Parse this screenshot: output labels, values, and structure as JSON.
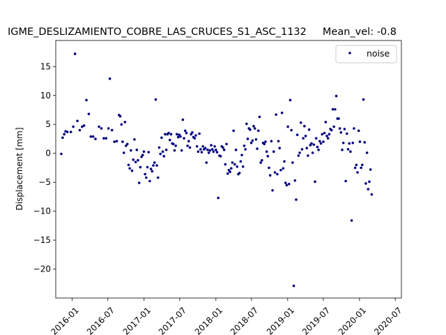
{
  "chart_data": {
    "type": "scatter",
    "title": "IGME_DESLIZAMIENTO_COBRE_LAS_CRUCES_S1_ASC_1132     Mean_vel: -0.8",
    "xlabel": "",
    "ylabel": "Displacement [mm]",
    "xlim": [
      "2015-10-10",
      "2020-08-01"
    ],
    "ylim": [
      -25,
      19.5
    ],
    "x_ticks": [
      "2016-01",
      "2016-07",
      "2017-01",
      "2017-07",
      "2018-01",
      "2018-07",
      "2019-01",
      "2019-07",
      "2020-01",
      "2020-07"
    ],
    "y_ticks": [
      15,
      10,
      5,
      0,
      -5,
      -10,
      -15,
      -20
    ],
    "grid": false,
    "legend": {
      "position": "upper right",
      "entries": [
        "noise"
      ]
    },
    "series": [
      {
        "name": "noise",
        "color": "#00007f",
        "marker": "dot",
        "points": [
          [
            "2015-11-07",
            -0.1
          ],
          [
            "2015-11-14",
            2.7
          ],
          [
            "2015-11-22",
            3.3
          ],
          [
            "2015-11-29",
            3.8
          ],
          [
            "2015-12-08",
            3.7
          ],
          [
            "2015-12-26",
            3.7
          ],
          [
            "2016-01-07",
            4.6
          ],
          [
            "2016-01-16",
            17.2
          ],
          [
            "2016-01-28",
            5.6
          ],
          [
            "2016-02-09",
            4.0
          ],
          [
            "2016-02-21",
            4.6
          ],
          [
            "2016-03-02",
            4.8
          ],
          [
            "2016-03-14",
            9.2
          ],
          [
            "2016-03-26",
            6.8
          ],
          [
            "2016-04-05",
            2.9
          ],
          [
            "2016-04-17",
            2.9
          ],
          [
            "2016-04-29",
            2.5
          ],
          [
            "2016-05-17",
            4.6
          ],
          [
            "2016-05-29",
            4.3
          ],
          [
            "2016-06-10",
            2.6
          ],
          [
            "2016-06-22",
            2.6
          ],
          [
            "2016-07-04",
            4.3
          ],
          [
            "2016-07-11",
            12.9
          ],
          [
            "2016-07-22",
            4.0
          ],
          [
            "2016-08-03",
            2.0
          ],
          [
            "2016-08-15",
            2.1
          ],
          [
            "2016-08-27",
            6.6
          ],
          [
            "2016-09-02",
            6.4
          ],
          [
            "2016-09-08",
            5.0
          ],
          [
            "2016-09-14",
            2.0
          ],
          [
            "2016-09-20",
            0.1
          ],
          [
            "2016-09-26",
            5.4
          ],
          [
            "2016-10-01",
            1.3
          ],
          [
            "2016-10-08",
            1.6
          ],
          [
            "2016-10-14",
            -2.0
          ],
          [
            "2016-10-20",
            -2.6
          ],
          [
            "2016-10-26",
            0.5
          ],
          [
            "2016-11-01",
            -3.0
          ],
          [
            "2016-11-07",
            -1.1
          ],
          [
            "2016-11-13",
            2.4
          ],
          [
            "2016-11-19",
            -1.5
          ],
          [
            "2016-11-25",
            0.6
          ],
          [
            "2016-12-01",
            -1.2
          ],
          [
            "2016-12-07",
            -5.1
          ],
          [
            "2016-12-13",
            -2.4
          ],
          [
            "2016-12-19",
            -0.6
          ],
          [
            "2016-12-25",
            -0.3
          ],
          [
            "2016-12-31",
            0.3
          ],
          [
            "2017-01-06",
            -3.6
          ],
          [
            "2017-01-12",
            -4.2
          ],
          [
            "2017-01-18",
            -2.4
          ],
          [
            "2017-01-24",
            0.2
          ],
          [
            "2017-01-30",
            -4.8
          ],
          [
            "2017-02-05",
            -2.7
          ],
          [
            "2017-02-11",
            -3.1
          ],
          [
            "2017-02-17",
            -2.1
          ],
          [
            "2017-02-23",
            -1.6
          ],
          [
            "2017-03-01",
            9.3
          ],
          [
            "2017-03-07",
            -2.1
          ],
          [
            "2017-03-13",
            -4.2
          ],
          [
            "2017-03-19",
            1.0
          ],
          [
            "2017-03-25",
            -0.1
          ],
          [
            "2017-03-31",
            2.7
          ],
          [
            "2017-04-06",
            0.3
          ],
          [
            "2017-04-12",
            -0.5
          ],
          [
            "2017-04-18",
            3.3
          ],
          [
            "2017-04-24",
            0.6
          ],
          [
            "2017-04-30",
            3.3
          ],
          [
            "2017-05-06",
            3.5
          ],
          [
            "2017-05-12",
            2.3
          ],
          [
            "2017-05-18",
            3.3
          ],
          [
            "2017-05-24",
            1.7
          ],
          [
            "2017-05-30",
            1.6
          ],
          [
            "2017-06-05",
            0.5
          ],
          [
            "2017-06-11",
            1.3
          ],
          [
            "2017-06-17",
            3.3
          ],
          [
            "2017-06-23",
            2.8
          ],
          [
            "2017-06-29",
            3.2
          ],
          [
            "2017-07-05",
            2.9
          ],
          [
            "2017-07-11",
            0.5
          ],
          [
            "2017-07-17",
            5.8
          ],
          [
            "2017-07-23",
            2.6
          ],
          [
            "2017-07-29",
            3.9
          ],
          [
            "2017-08-04",
            3.5
          ],
          [
            "2017-08-10",
            1.3
          ],
          [
            "2017-08-16",
            2.1
          ],
          [
            "2017-08-22",
            1.0
          ],
          [
            "2017-08-28",
            3.3
          ],
          [
            "2017-09-03",
            3.6
          ],
          [
            "2017-09-09",
            2.8
          ],
          [
            "2017-09-15",
            2.6
          ],
          [
            "2017-09-21",
            3.1
          ],
          [
            "2017-09-27",
            1.2
          ],
          [
            "2017-10-03",
            0.3
          ],
          [
            "2017-10-09",
            3.4
          ],
          [
            "2017-10-15",
            0.7
          ],
          [
            "2017-10-21",
            0.2
          ],
          [
            "2017-10-27",
            1.2
          ],
          [
            "2017-11-02",
            0.7
          ],
          [
            "2017-11-08",
            0.9
          ],
          [
            "2017-11-14",
            -1.6
          ],
          [
            "2017-11-20",
            0.6
          ],
          [
            "2017-11-26",
            0.1
          ],
          [
            "2017-12-02",
            0.5
          ],
          [
            "2017-12-08",
            1.4
          ],
          [
            "2017-12-14",
            0.7
          ],
          [
            "2017-12-20",
            0.3
          ],
          [
            "2017-12-26",
            1.2
          ],
          [
            "2018-01-01",
            0.6
          ],
          [
            "2018-01-07",
            0.2
          ],
          [
            "2018-01-13",
            -7.7
          ],
          [
            "2018-01-19",
            -0.4
          ],
          [
            "2018-01-25",
            -0.5
          ],
          [
            "2018-01-31",
            1.2
          ],
          [
            "2018-02-06",
            1.0
          ],
          [
            "2018-02-12",
            0.6
          ],
          [
            "2018-02-18",
            -1.9
          ],
          [
            "2018-02-24",
            1.6
          ],
          [
            "2018-03-02",
            -3.5
          ],
          [
            "2018-03-08",
            -2.9
          ],
          [
            "2018-03-14",
            -3.2
          ],
          [
            "2018-03-20",
            -2.6
          ],
          [
            "2018-03-26",
            -1.6
          ],
          [
            "2018-04-01",
            3.9
          ],
          [
            "2018-04-07",
            -1.9
          ],
          [
            "2018-04-13",
            0.6
          ],
          [
            "2018-04-19",
            -2.3
          ],
          [
            "2018-04-25",
            -3.6
          ],
          [
            "2018-05-01",
            -3.4
          ],
          [
            "2018-05-07",
            -1.4
          ],
          [
            "2018-05-13",
            -0.3
          ],
          [
            "2018-05-19",
            -2.3
          ],
          [
            "2018-05-25",
            1.3
          ],
          [
            "2018-05-31",
            0.7
          ],
          [
            "2018-06-06",
            5.1
          ],
          [
            "2018-06-12",
            2.5
          ],
          [
            "2018-06-18",
            4.3
          ],
          [
            "2018-06-24",
            4.1
          ],
          [
            "2018-06-30",
            1.8
          ],
          [
            "2018-07-06",
            2.2
          ],
          [
            "2018-07-12",
            4.7
          ],
          [
            "2018-07-18",
            4.3
          ],
          [
            "2018-07-24",
            2.4
          ],
          [
            "2018-07-30",
            0.8
          ],
          [
            "2018-08-05",
            3.9
          ],
          [
            "2018-08-11",
            6.3
          ],
          [
            "2018-08-17",
            -1.6
          ],
          [
            "2018-08-23",
            -1.2
          ],
          [
            "2018-08-29",
            1.8
          ],
          [
            "2018-09-04",
            1.6
          ],
          [
            "2018-09-10",
            2.0
          ],
          [
            "2018-09-16",
            0.3
          ],
          [
            "2018-09-22",
            -0.5
          ],
          [
            "2018-09-28",
            -2.5
          ],
          [
            "2018-10-04",
            -3.8
          ],
          [
            "2018-10-10",
            2.1
          ],
          [
            "2018-10-16",
            -6.4
          ],
          [
            "2018-10-22",
            0.3
          ],
          [
            "2018-10-28",
            -3.3
          ],
          [
            "2018-11-03",
            6.7
          ],
          [
            "2018-11-09",
            -3.6
          ],
          [
            "2018-11-15",
            2.1
          ],
          [
            "2018-11-21",
            0.9
          ],
          [
            "2018-11-27",
            -2.9
          ],
          [
            "2018-12-03",
            7.0
          ],
          [
            "2018-12-09",
            -2.6
          ],
          [
            "2018-12-15",
            -1.4
          ],
          [
            "2018-12-21",
            -5.1
          ],
          [
            "2018-12-27",
            -5.5
          ],
          [
            "2019-01-02",
            4.6
          ],
          [
            "2019-01-08",
            -5.3
          ],
          [
            "2019-01-14",
            9.2
          ],
          [
            "2019-01-20",
            4.0
          ],
          [
            "2019-01-26",
            -1.6
          ],
          [
            "2019-02-01",
            -22.9
          ],
          [
            "2019-02-07",
            -4.7
          ],
          [
            "2019-02-13",
            -8.0
          ],
          [
            "2019-02-19",
            3.2
          ],
          [
            "2019-02-25",
            -0.4
          ],
          [
            "2019-03-03",
            0.1
          ],
          [
            "2019-03-09",
            5.3
          ],
          [
            "2019-03-15",
            0.7
          ],
          [
            "2019-03-21",
            2.6
          ],
          [
            "2019-03-27",
            4.7
          ],
          [
            "2019-04-02",
            3.0
          ],
          [
            "2019-04-08",
            0.9
          ],
          [
            "2019-04-14",
            -0.4
          ],
          [
            "2019-04-20",
            4.1
          ],
          [
            "2019-04-26",
            1.4
          ],
          [
            "2019-05-02",
            1.7
          ],
          [
            "2019-05-08",
            0.1
          ],
          [
            "2019-05-14",
            1.5
          ],
          [
            "2019-05-20",
            -4.9
          ],
          [
            "2019-05-26",
            2.6
          ],
          [
            "2019-06-01",
            1.1
          ],
          [
            "2019-06-07",
            0.6
          ],
          [
            "2019-06-13",
            2.1
          ],
          [
            "2019-06-19",
            1.7
          ],
          [
            "2019-06-25",
            3.3
          ],
          [
            "2019-07-01",
            2.0
          ],
          [
            "2019-07-07",
            3.5
          ],
          [
            "2019-07-13",
            5.4
          ],
          [
            "2019-07-19",
            3.0
          ],
          [
            "2019-07-25",
            2.6
          ],
          [
            "2019-07-31",
            3.3
          ],
          [
            "2019-08-06",
            4.2
          ],
          [
            "2019-08-12",
            4.0
          ],
          [
            "2019-08-18",
            7.6
          ],
          [
            "2019-08-24",
            4.6
          ],
          [
            "2019-08-30",
            7.6
          ],
          [
            "2019-09-05",
            9.9
          ],
          [
            "2019-09-11",
            6.0
          ],
          [
            "2019-09-17",
            6.0
          ],
          [
            "2019-09-23",
            4.3
          ],
          [
            "2019-09-29",
            3.6
          ],
          [
            "2019-10-05",
            0.6
          ],
          [
            "2019-10-11",
            1.8
          ],
          [
            "2019-10-17",
            4.2
          ],
          [
            "2019-10-23",
            -4.8
          ],
          [
            "2019-10-29",
            3.4
          ],
          [
            "2019-11-04",
            0.7
          ],
          [
            "2019-11-10",
            1.7
          ],
          [
            "2019-11-16",
            0.3
          ],
          [
            "2019-11-22",
            -11.6
          ],
          [
            "2019-11-28",
            1.8
          ],
          [
            "2019-12-04",
            4.3
          ],
          [
            "2019-12-10",
            -2.5
          ],
          [
            "2019-12-16",
            -2.0
          ],
          [
            "2019-12-22",
            -3.3
          ],
          [
            "2019-12-28",
            3.9
          ],
          [
            "2020-01-03",
            2.0
          ],
          [
            "2020-01-09",
            -2.5
          ],
          [
            "2020-01-15",
            -2.0
          ],
          [
            "2020-01-21",
            9.3
          ],
          [
            "2020-01-27",
            1.9
          ],
          [
            "2020-02-02",
            -5.2
          ],
          [
            "2020-02-08",
            0.1
          ],
          [
            "2020-02-14",
            -6.2
          ],
          [
            "2020-02-20",
            -4.9
          ],
          [
            "2020-02-26",
            -2.8
          ],
          [
            "2020-03-03",
            -7.1
          ]
        ]
      }
    ]
  }
}
